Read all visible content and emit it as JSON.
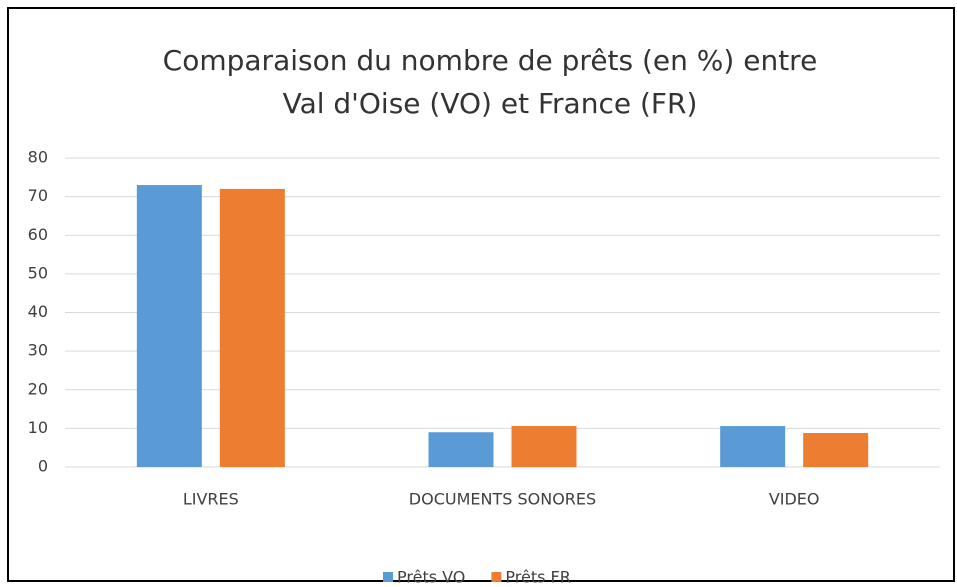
{
  "chart_data": {
    "type": "bar",
    "title": [
      "Comparaison du nombre de prêts (en %) entre",
      "Val d'Oise (VO) et France (FR)"
    ],
    "categories": [
      "LIVRES",
      "DOCUMENTS SONORES",
      "VIDEO"
    ],
    "series": [
      {
        "name": "Prêts VO",
        "color": "#5b9bd5",
        "values": [
          73,
          9,
          10.6
        ]
      },
      {
        "name": "Prêts FR",
        "color": "#ed7d31",
        "values": [
          72,
          10.6,
          8.8
        ]
      }
    ],
    "ylim": [
      0,
      80
    ],
    "yticks": [
      0,
      10,
      20,
      30,
      40,
      50,
      60,
      70,
      80
    ],
    "grid": true,
    "legend": "bottom"
  }
}
